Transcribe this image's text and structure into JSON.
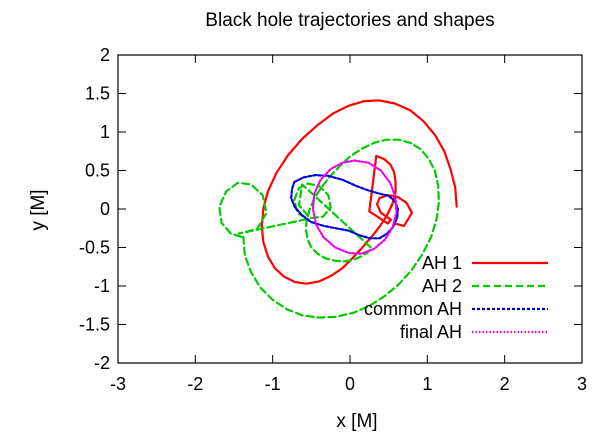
{
  "chart_data": {
    "type": "line",
    "title": "Black hole trajectories and shapes",
    "xlabel": "x [M]",
    "ylabel": "y [M]",
    "xlim": [
      -3,
      3
    ],
    "ylim": [
      -2,
      2
    ],
    "xticks": [
      -3,
      -2,
      -1,
      0,
      1,
      2,
      3
    ],
    "yticks": [
      -2,
      -1.5,
      -1,
      -0.5,
      0,
      0.5,
      1,
      1.5,
      2
    ],
    "xtick_labels": [
      "-3",
      "-2",
      "-1",
      "0",
      "1",
      "2",
      "3"
    ],
    "ytick_labels": [
      "-2",
      "-1.5",
      "-1",
      "-0.5",
      "0",
      "0.5",
      "1",
      "1.5",
      "2"
    ],
    "grid": false,
    "legend_position": "bottom-right",
    "series": [
      {
        "name": "AH 1",
        "color": "#ff0000",
        "dash": "solid",
        "x": [
          1.38,
          1.36,
          1.3,
          1.22,
          1.1,
          0.95,
          0.78,
          0.58,
          0.38,
          0.18,
          -0.02,
          -0.22,
          -0.42,
          -0.62,
          -0.8,
          -0.95,
          -1.06,
          -1.12,
          -1.14,
          -1.12,
          -1.06,
          -0.97,
          -0.85,
          -0.71,
          -0.56,
          -0.4,
          -0.25,
          -0.1,
          0.03,
          0.16,
          0.28,
          0.39,
          0.48,
          0.55,
          0.59,
          0.59,
          0.57,
          0.52,
          0.44,
          0.34,
          0.25,
          0.49,
          0.53,
          0.4,
          0.35,
          0.38,
          0.48,
          0.61,
          0.73,
          0.8,
          0.7,
          0.58
        ],
        "y": [
          0.03,
          0.28,
          0.52,
          0.75,
          0.96,
          1.14,
          1.28,
          1.37,
          1.41,
          1.4,
          1.34,
          1.24,
          1.09,
          0.91,
          0.7,
          0.47,
          0.23,
          0.01,
          -0.23,
          -0.43,
          -0.62,
          -0.77,
          -0.88,
          -0.95,
          -0.97,
          -0.94,
          -0.87,
          -0.77,
          -0.64,
          -0.5,
          -0.36,
          -0.22,
          -0.08,
          0.07,
          0.22,
          0.35,
          0.48,
          0.58,
          0.65,
          0.69,
          -0.03,
          -0.19,
          -0.14,
          -0.05,
          0.06,
          0.14,
          0.18,
          0.16,
          0.08,
          -0.05,
          -0.22,
          -0.19
        ]
      },
      {
        "name": "AH 2",
        "color": "#00cc00",
        "dash": "dashed",
        "x": [
          -1.38,
          -1.36,
          -1.28,
          -1.16,
          -1.0,
          -0.82,
          -0.62,
          -0.4,
          -0.18,
          0.04,
          0.25,
          0.45,
          0.64,
          0.8,
          0.94,
          1.05,
          1.12,
          1.15,
          1.14,
          1.1,
          1.02,
          0.91,
          0.78,
          0.63,
          0.47,
          0.31,
          0.15,
          0.0,
          -0.14,
          -0.26,
          -0.37,
          -0.46,
          -0.52,
          -0.56,
          -0.57,
          -0.55,
          -0.5,
          -0.42,
          -0.32,
          -0.2,
          -0.08,
          0.04,
          0.14,
          0.22,
          0.28,
          -0.62,
          -0.66,
          -0.52,
          -0.35,
          -0.25,
          -0.28,
          -0.4,
          -0.55,
          -0.66,
          -0.72,
          -0.68,
          -0.55,
          -1.44,
          -1.2,
          -1.08,
          -1.13,
          -1.28,
          -1.45,
          -1.6,
          -1.69,
          -1.66,
          -1.54,
          -1.38
        ],
        "y": [
          -0.36,
          -0.6,
          -0.82,
          -1.02,
          -1.18,
          -1.3,
          -1.38,
          -1.41,
          -1.4,
          -1.35,
          -1.26,
          -1.13,
          -0.97,
          -0.79,
          -0.58,
          -0.36,
          -0.13,
          0.09,
          0.3,
          0.49,
          0.65,
          0.78,
          0.86,
          0.9,
          0.9,
          0.86,
          0.78,
          0.68,
          0.55,
          0.42,
          0.28,
          0.14,
          0.0,
          -0.14,
          -0.27,
          -0.39,
          -0.5,
          -0.58,
          -0.64,
          -0.67,
          -0.68,
          -0.66,
          -0.62,
          -0.57,
          -0.51,
          0.32,
          0.05,
          -0.12,
          -0.1,
          0.02,
          0.18,
          0.3,
          0.33,
          0.27,
          0.12,
          -0.05,
          -0.13,
          -0.32,
          -0.26,
          -0.05,
          0.18,
          0.32,
          0.34,
          0.23,
          0.03,
          -0.18,
          -0.32,
          -0.37
        ]
      },
      {
        "name": "common AH",
        "color": "#0000dd",
        "dash": "dotted-dense",
        "x": [
          -0.72,
          -0.6,
          -0.45,
          -0.28,
          -0.1,
          0.08,
          0.24,
          0.38,
          0.5,
          0.58,
          0.62,
          0.61,
          0.56,
          0.48,
          0.38,
          0.26,
          0.12,
          -0.02,
          -0.18,
          -0.34,
          -0.5,
          -0.62,
          -0.71,
          -0.76,
          -0.75,
          -0.72
        ],
        "y": [
          0.35,
          0.41,
          0.44,
          0.43,
          0.38,
          0.3,
          0.24,
          0.2,
          0.17,
          0.1,
          0.0,
          -0.11,
          -0.23,
          -0.32,
          -0.38,
          -0.38,
          -0.34,
          -0.28,
          -0.25,
          -0.22,
          -0.17,
          -0.08,
          0.02,
          0.14,
          0.26,
          0.35
        ]
      },
      {
        "name": "final AH",
        "color": "#ee00ee",
        "dash": "dotted",
        "x": [
          0.06,
          0.24,
          0.4,
          0.52,
          0.59,
          0.6,
          0.55,
          0.45,
          0.31,
          0.15,
          -0.02,
          -0.19,
          -0.34,
          -0.44,
          -0.48,
          -0.46,
          -0.38,
          -0.25,
          -0.1,
          0.06
        ],
        "y": [
          0.63,
          0.6,
          0.5,
          0.34,
          0.15,
          -0.05,
          -0.24,
          -0.4,
          -0.52,
          -0.58,
          -0.57,
          -0.5,
          -0.37,
          -0.2,
          0.0,
          0.2,
          0.38,
          0.52,
          0.6,
          0.63
        ]
      }
    ]
  }
}
